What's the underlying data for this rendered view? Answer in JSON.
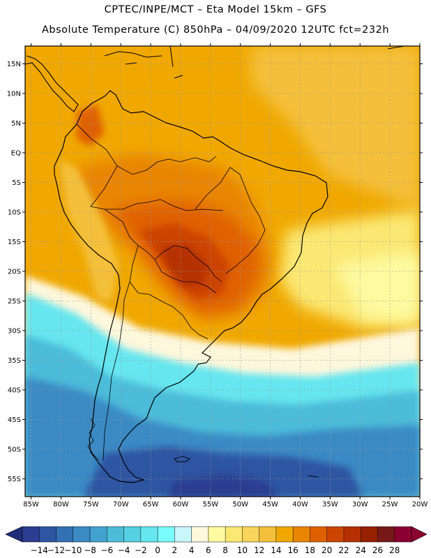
{
  "header": {
    "line1": "CPTEC/INPE/MCT –  Eta Model 15km – GFS",
    "line2": "Absolute Temperature (C) 850hPa – 04/09/2020 12UTC fct=232h"
  },
  "map": {
    "lat_labels": [
      "15N",
      "10N",
      "5N",
      "EQ",
      "5S",
      "10S",
      "15S",
      "20S",
      "25S",
      "30S",
      "35S",
      "40S",
      "45S",
      "50S",
      "55S"
    ],
    "lat_values": [
      15,
      10,
      5,
      0,
      -5,
      -10,
      -15,
      -20,
      -25,
      -30,
      -35,
      -40,
      -45,
      -50,
      -55
    ],
    "lon_labels": [
      "85W",
      "80W",
      "75W",
      "70W",
      "65W",
      "60W",
      "55W",
      "50W",
      "45W",
      "40W",
      "35W",
      "30W",
      "25W",
      "20W"
    ],
    "lon_values": [
      -85,
      -80,
      -75,
      -70,
      -65,
      -60,
      -55,
      -50,
      -45,
      -40,
      -35,
      -30,
      -25,
      -20
    ],
    "lat_range": [
      -58,
      18
    ],
    "lon_range": [
      -86,
      -20
    ],
    "ocean_color": "#f0a800",
    "coast_color": "#000000"
  },
  "colorbar": {
    "labels": [
      "-14",
      "-12",
      "-10",
      "-8",
      "-6",
      "-4",
      "-2",
      "0",
      "2",
      "4",
      "6",
      "8",
      "10",
      "12",
      "14",
      "16",
      "18",
      "20",
      "22",
      "24",
      "26",
      "28"
    ],
    "colors": [
      "#2a3d90",
      "#2e55a2",
      "#3470b4",
      "#3a8ac4",
      "#42a2cf",
      "#4cbcd9",
      "#55d0e2",
      "#66e6ef",
      "#7afbfb",
      "#c8f6fb",
      "#fdf7dc",
      "#fdfaa0",
      "#fbe873",
      "#f8d55a",
      "#f4c03b",
      "#f0a800",
      "#e98500",
      "#e06000",
      "#cc4500",
      "#b53000",
      "#962000",
      "#761818",
      "#8a0030"
    ],
    "low_arrow_color": "#1f2d7a",
    "high_arrow_color": "#8a0030"
  }
}
